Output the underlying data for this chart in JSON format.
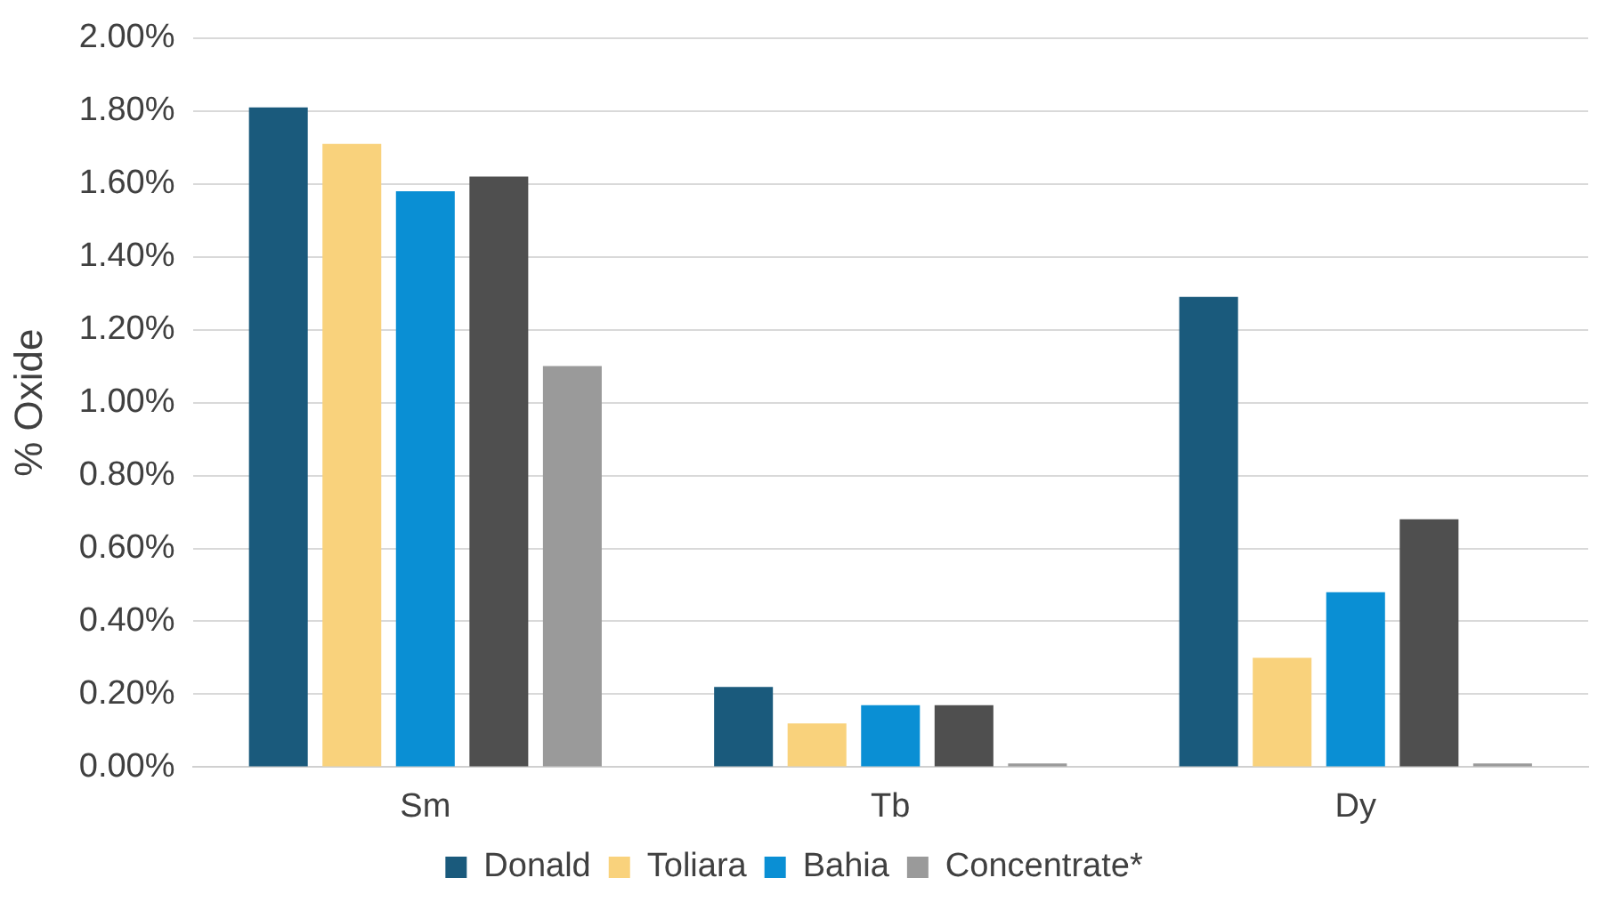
{
  "chart_data": {
    "type": "bar",
    "ylabel": "% Oxide",
    "categories": [
      "Sm",
      "Tb",
      "Dy"
    ],
    "series": [
      {
        "name": "Donald",
        "color": "#1a5a7c",
        "values": [
          1.81,
          0.22,
          1.29
        ]
      },
      {
        "name": "Toliara",
        "color": "#f9d27c",
        "values": [
          1.71,
          0.12,
          0.3
        ]
      },
      {
        "name": "Bahia",
        "color": "#0a8fd4",
        "values": [
          1.58,
          0.17,
          0.48
        ]
      },
      {
        "color": "#4f4f4f",
        "values": [
          1.62,
          0.17,
          0.68
        ]
      },
      {
        "name": "Concentrate*",
        "color": "#9a9a9a",
        "values": [
          1.1,
          0.01,
          0.01
        ]
      }
    ],
    "ylim": [
      0,
      2
    ],
    "yticks": [
      {
        "value": 0,
        "label": "0.00%"
      },
      {
        "value": 0.2,
        "label": "0.20%"
      },
      {
        "value": 0.4,
        "label": "0.40%"
      },
      {
        "value": 0.6,
        "label": "0.60%"
      },
      {
        "value": 0.8,
        "label": "0.80%"
      },
      {
        "value": 1,
        "label": "1.00%"
      },
      {
        "value": 1.2,
        "label": "1.20%"
      },
      {
        "value": 1.4,
        "label": "1.40%"
      },
      {
        "value": 1.6,
        "label": "1.60%"
      },
      {
        "value": 1.8,
        "label": "1.80%"
      },
      {
        "value": 2,
        "label": "2.00%"
      }
    ],
    "grid": "y",
    "legend": "bottom"
  }
}
